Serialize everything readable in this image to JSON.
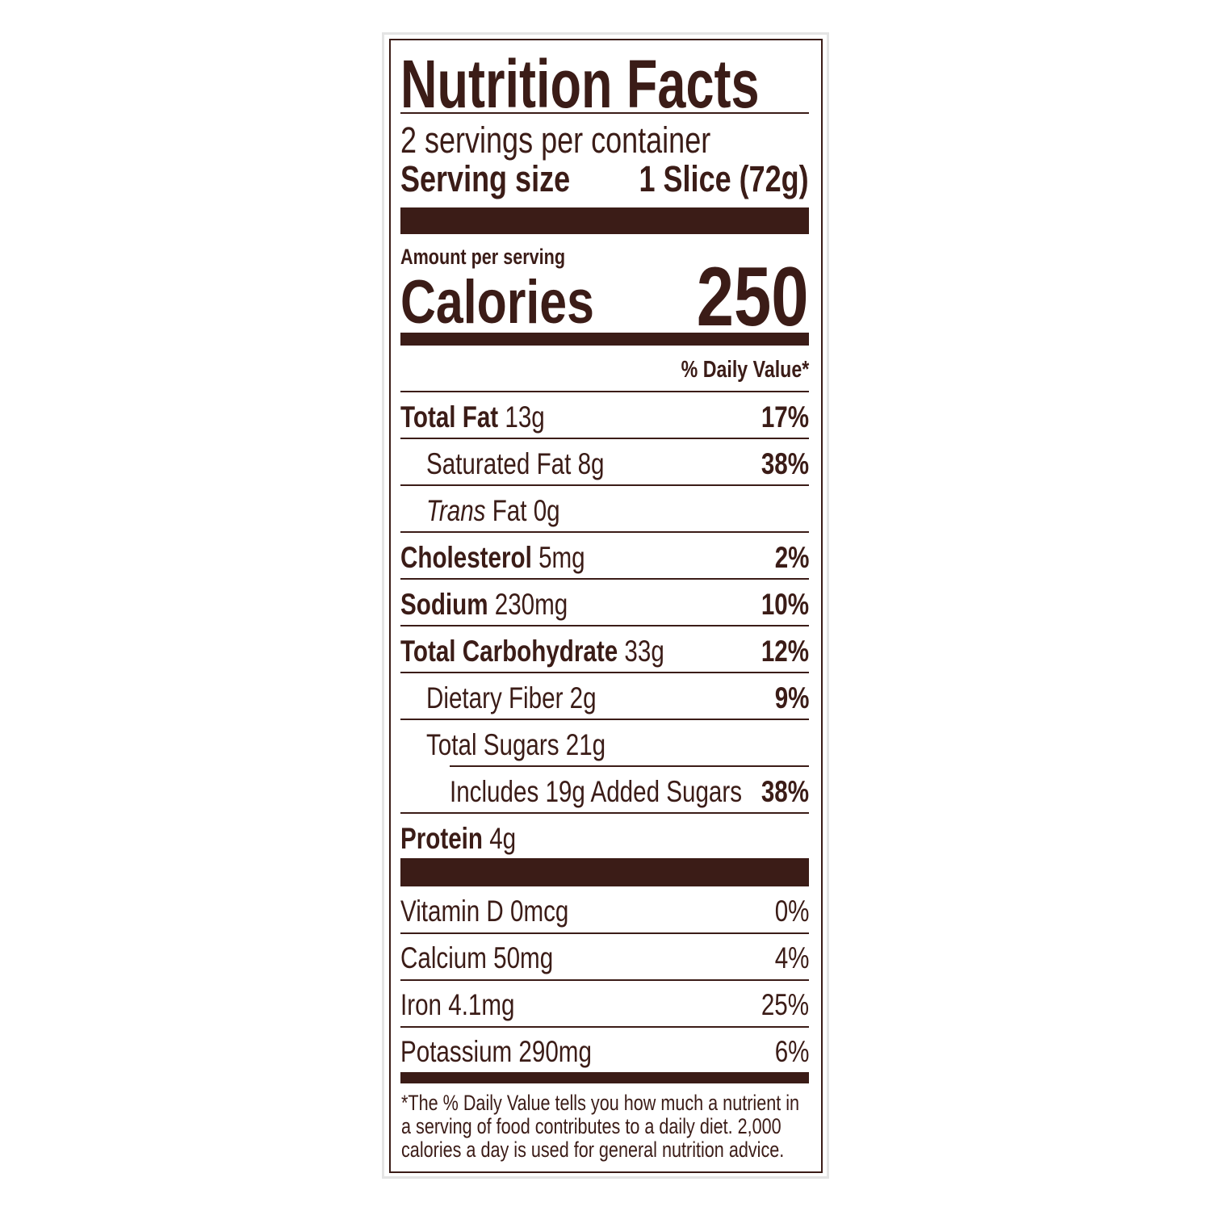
{
  "title": "Nutrition Facts",
  "servings": "2 servings per container",
  "serving_size": {
    "label": "Serving size",
    "value": "1 Slice (72g)"
  },
  "amount_per_serving": "Amount per serving",
  "calories": {
    "label": "Calories",
    "value": 250
  },
  "daily_value_header": "% Daily Value*",
  "nutrients": [
    {
      "name": "Total Fat",
      "amount": "13g",
      "dv": "17%"
    },
    {
      "name": "Saturated Fat",
      "amount": "8g",
      "dv": "38%"
    },
    {
      "name_italic": "Trans",
      "name": "Fat",
      "amount": "0g"
    },
    {
      "name": "Cholesterol",
      "amount": "5mg",
      "dv": "2%"
    },
    {
      "name": "Sodium",
      "amount": "230mg",
      "dv": "10%"
    },
    {
      "name": "Total Carbohydrate",
      "amount": "33g",
      "dv": "12%"
    },
    {
      "name": "Dietary Fiber",
      "amount": "2g",
      "dv": "9%"
    },
    {
      "name": "Total Sugars",
      "amount": "21g"
    },
    {
      "name": "Includes 19g Added Sugars",
      "dv": "38%"
    },
    {
      "name": "Protein",
      "amount": "4g"
    }
  ],
  "vitamins": [
    {
      "name": "Vitamin D",
      "amount": "0mcg",
      "dv": "0%"
    },
    {
      "name": "Calcium",
      "amount": "50mg",
      "dv": "4%"
    },
    {
      "name": "Iron",
      "amount": "4.1mg",
      "dv": "25%"
    },
    {
      "name": "Potassium",
      "amount": "290mg",
      "dv": "6%"
    }
  ],
  "footnote": [
    "*The % Daily Value tells you how much a nutrient in",
    "a serving of food contributes to a daily diet. 2,000",
    "calories a day is used for general nutrition advice."
  ]
}
